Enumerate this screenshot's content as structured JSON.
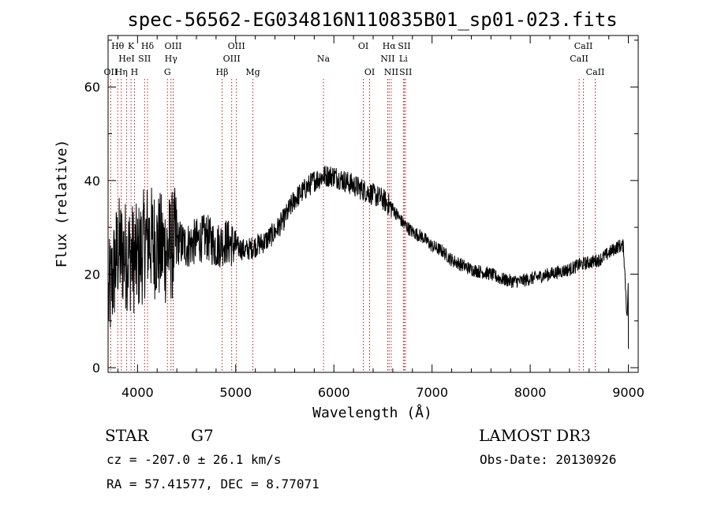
{
  "chart_data": {
    "type": "line",
    "title": "spec-56562-EG034816N110835B01_sp01-023.fits",
    "xlabel": "Wavelength (Å)",
    "ylabel": "Flux (relative)",
    "xlim": [
      3700,
      9100
    ],
    "ylim": [
      -1,
      71
    ],
    "x_ticks": [
      4000,
      5000,
      6000,
      7000,
      8000,
      9000
    ],
    "y_ticks": [
      0,
      20,
      40,
      60
    ],
    "grid": false,
    "series": [
      {
        "x": [
          3700,
          3800,
          3900,
          4000,
          4100,
          4200,
          4300,
          4400,
          4500,
          4600,
          4700,
          4800,
          4900,
          5000,
          5100,
          5200,
          5300,
          5400,
          5500,
          5600,
          5700,
          5800,
          5900,
          6000,
          6100,
          6200,
          6300,
          6400,
          6500,
          6600,
          6700,
          6800,
          6900,
          7000,
          7100,
          7200,
          7300,
          7400,
          7500,
          7600,
          7700,
          7800,
          7900,
          8000,
          8100,
          8200,
          8300,
          8400,
          8500,
          8600,
          8700,
          8800,
          8900,
          8950,
          9000
        ],
        "values": [
          14,
          25,
          24,
          23,
          28,
          26,
          25,
          27,
          26,
          27,
          28,
          26,
          27,
          26,
          25,
          26,
          27,
          29,
          32,
          36,
          38,
          40,
          41,
          41,
          40,
          39,
          38,
          37,
          36,
          34,
          31,
          29,
          28,
          26,
          25,
          23,
          22,
          21,
          20.5,
          20,
          19,
          18.5,
          18.5,
          19,
          19.5,
          20,
          20.5,
          21,
          22,
          22.5,
          23,
          24.5,
          26,
          26,
          5
        ]
      }
    ]
  },
  "lines": [
    {
      "label": "OII",
      "wl": 3727,
      "row": 3
    },
    {
      "label": "Hθ",
      "wl": 3798,
      "row": 1
    },
    {
      "label": "Hη",
      "wl": 3835,
      "row": 3
    },
    {
      "label": "HeI",
      "wl": 3889,
      "row": 2
    },
    {
      "label": "K",
      "wl": 3934,
      "row": 1
    },
    {
      "label": "H",
      "wl": 3969,
      "row": 3
    },
    {
      "label": "SII",
      "wl": 4072,
      "row": 2
    },
    {
      "label": "Hδ",
      "wl": 4102,
      "row": 1
    },
    {
      "label": "G",
      "wl": 4305,
      "row": 3
    },
    {
      "label": "Hγ",
      "wl": 4341,
      "row": 2
    },
    {
      "label": "OIII",
      "wl": 4363,
      "row": 1
    },
    {
      "label": "Hβ",
      "wl": 4861,
      "row": 3
    },
    {
      "label": "OIII",
      "wl": 4959,
      "row": 2
    },
    {
      "label": "OIII",
      "wl": 5007,
      "row": 1
    },
    {
      "label": "Mg",
      "wl": 5175,
      "row": 3
    },
    {
      "label": "Na",
      "wl": 5894,
      "row": 2
    },
    {
      "label": "OI",
      "wl": 6300,
      "row": 1
    },
    {
      "label": "OI",
      "wl": 6364,
      "row": 3
    },
    {
      "label": "NII",
      "wl": 6548,
      "row": 2
    },
    {
      "label": "Hα",
      "wl": 6563,
      "row": 1
    },
    {
      "label": "NII",
      "wl": 6584,
      "row": 3
    },
    {
      "label": "SII",
      "wl": 6717,
      "row": 1
    },
    {
      "label": "Li",
      "wl": 6708,
      "row": 2
    },
    {
      "label": "SII",
      "wl": 6731,
      "row": 3
    },
    {
      "label": "CaII",
      "wl": 8498,
      "row": 2
    },
    {
      "label": "CaII",
      "wl": 8542,
      "row": 1
    },
    {
      "label": "CaII",
      "wl": 8662,
      "row": 3
    }
  ],
  "info": {
    "class": "STAR",
    "subclass": "G7",
    "survey": "LAMOST DR3",
    "cz": "cz = -207.0 ± 26.1 km/s",
    "obsdate": "Obs-Date: 20130926",
    "radec": "RA =  57.41577, DEC =   8.77071"
  }
}
